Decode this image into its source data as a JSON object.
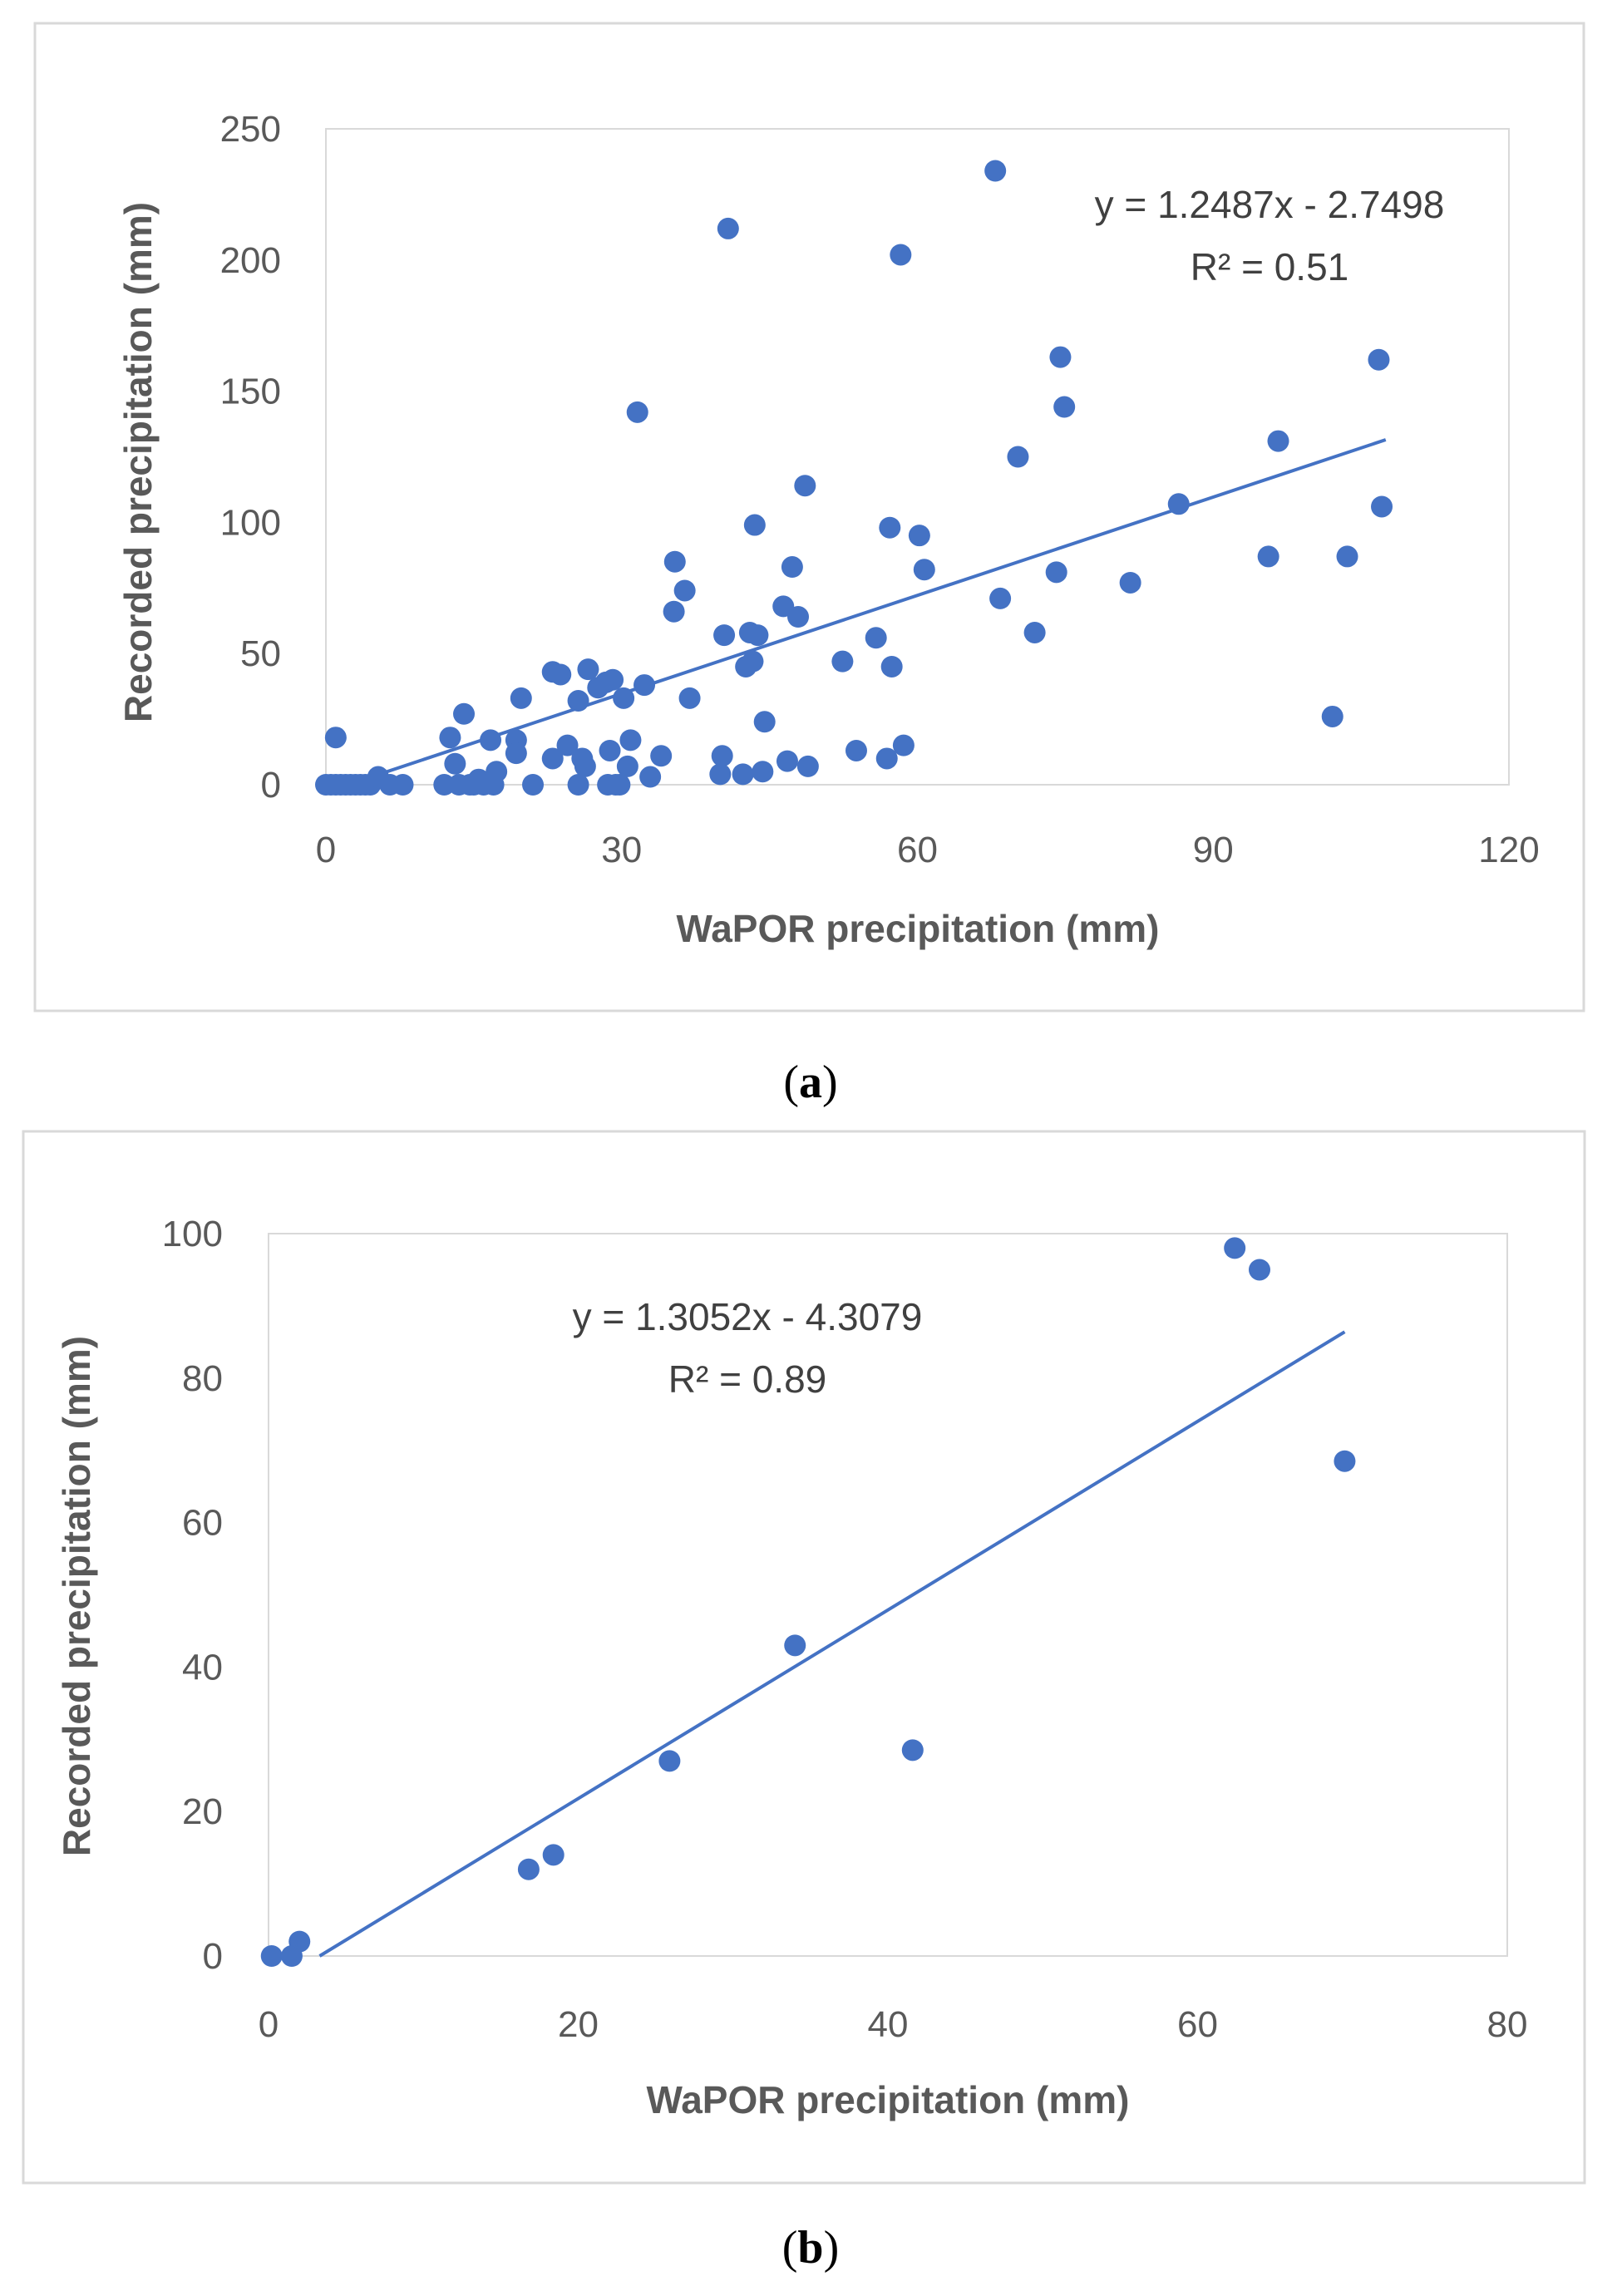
{
  "chart_data": [
    {
      "type": "scatter",
      "caption": "a",
      "xlabel": "WaPOR precipitation (mm)",
      "ylabel": "Recorded precipitation  (mm)",
      "xlim": [
        0,
        120
      ],
      "ylim": [
        0,
        250
      ],
      "xticks": [
        "0",
        "30",
        "60",
        "90",
        "120"
      ],
      "yticks": [
        "0",
        "50",
        "100",
        "150",
        "200",
        "250"
      ],
      "grid": false,
      "color": "#4472C4",
      "equation": "y = 1.2487x - 2.7498",
      "r2": "R² = 0.51",
      "trendline": {
        "slope": 1.2487,
        "intercept": -2.7498,
        "x_range": [
          0,
          107.5
        ]
      },
      "points": [
        [
          0,
          0
        ],
        [
          0.5,
          0
        ],
        [
          1,
          0
        ],
        [
          1.5,
          0
        ],
        [
          2,
          0
        ],
        [
          2.5,
          0
        ],
        [
          3,
          0
        ],
        [
          3.5,
          0
        ],
        [
          4,
          0
        ],
        [
          4.5,
          0
        ],
        [
          1,
          18
        ],
        [
          5.3,
          3
        ],
        [
          6.5,
          0
        ],
        [
          7.8,
          0
        ],
        [
          12,
          0
        ],
        [
          12.6,
          18
        ],
        [
          13.1,
          8
        ],
        [
          13.5,
          0
        ],
        [
          14,
          27
        ],
        [
          14.6,
          0
        ],
        [
          15,
          0
        ],
        [
          15.5,
          2
        ],
        [
          16,
          0
        ],
        [
          16.7,
          17
        ],
        [
          17,
          0
        ],
        [
          17.3,
          5
        ],
        [
          19.3,
          17
        ],
        [
          19.3,
          12
        ],
        [
          19.8,
          33
        ],
        [
          21,
          0
        ],
        [
          23,
          43
        ],
        [
          23,
          10
        ],
        [
          23.8,
          42
        ],
        [
          24.5,
          15
        ],
        [
          25.6,
          32
        ],
        [
          25.6,
          0
        ],
        [
          26,
          10
        ],
        [
          26.3,
          7
        ],
        [
          26.6,
          44
        ],
        [
          27.6,
          37
        ],
        [
          28.4,
          39
        ],
        [
          28.6,
          0
        ],
        [
          28.8,
          13
        ],
        [
          29.1,
          40
        ],
        [
          29.4,
          0
        ],
        [
          29.8,
          0
        ],
        [
          30.2,
          33
        ],
        [
          30.6,
          7
        ],
        [
          30.9,
          17
        ],
        [
          31.6,
          142
        ],
        [
          32.3,
          38
        ],
        [
          32.9,
          3
        ],
        [
          34,
          11
        ],
        [
          35.3,
          66
        ],
        [
          35.4,
          85
        ],
        [
          36.4,
          74
        ],
        [
          36.9,
          33
        ],
        [
          40,
          4
        ],
        [
          40.2,
          11
        ],
        [
          40.4,
          57
        ],
        [
          40.8,
          212
        ],
        [
          42.3,
          4
        ],
        [
          42.6,
          45
        ],
        [
          43,
          58
        ],
        [
          43.3,
          47
        ],
        [
          43.5,
          99
        ],
        [
          43.8,
          57
        ],
        [
          44.3,
          5
        ],
        [
          44.5,
          24
        ],
        [
          46.4,
          68
        ],
        [
          46.8,
          9
        ],
        [
          47.3,
          83
        ],
        [
          47.9,
          64
        ],
        [
          48.6,
          114
        ],
        [
          48.9,
          7
        ],
        [
          52.4,
          47
        ],
        [
          53.8,
          13
        ],
        [
          55.8,
          56
        ],
        [
          56.9,
          10
        ],
        [
          57.2,
          98
        ],
        [
          57.4,
          45
        ],
        [
          58.3,
          202
        ],
        [
          58.6,
          15
        ],
        [
          60.2,
          95
        ],
        [
          60.7,
          82
        ],
        [
          67.9,
          234
        ],
        [
          68.4,
          71
        ],
        [
          70.2,
          125
        ],
        [
          71.9,
          58
        ],
        [
          74.1,
          81
        ],
        [
          74.5,
          163
        ],
        [
          74.9,
          144
        ],
        [
          81.6,
          77
        ],
        [
          86.5,
          107
        ],
        [
          95.6,
          87
        ],
        [
          96.6,
          131
        ],
        [
          102.1,
          26
        ],
        [
          103.6,
          87
        ],
        [
          106.8,
          162
        ],
        [
          107.1,
          106
        ]
      ]
    },
    {
      "type": "scatter",
      "caption": "b",
      "xlabel": "WaPOR precipitation (mm)",
      "ylabel": "Recorded precipitation  (mm)",
      "xlim": [
        0,
        80
      ],
      "ylim": [
        0,
        100
      ],
      "xticks": [
        "0",
        "20",
        "40",
        "60",
        "80"
      ],
      "yticks": [
        "0",
        "20",
        "40",
        "60",
        "80",
        "100"
      ],
      "grid": false,
      "color": "#4472C4",
      "equation": "y = 1.3052x - 4.3079",
      "r2": "R² = 0.89",
      "trendline": {
        "slope": 1.3052,
        "intercept": -4.3079,
        "x_range": [
          3.3,
          69.5
        ]
      },
      "points": [
        [
          0.2,
          0
        ],
        [
          1.5,
          0
        ],
        [
          2,
          2
        ],
        [
          16.8,
          12
        ],
        [
          18.4,
          14
        ],
        [
          25.9,
          27
        ],
        [
          34,
          43
        ],
        [
          41.6,
          28.5
        ],
        [
          62.4,
          98
        ],
        [
          64,
          95
        ],
        [
          69.5,
          68.5
        ]
      ]
    }
  ]
}
